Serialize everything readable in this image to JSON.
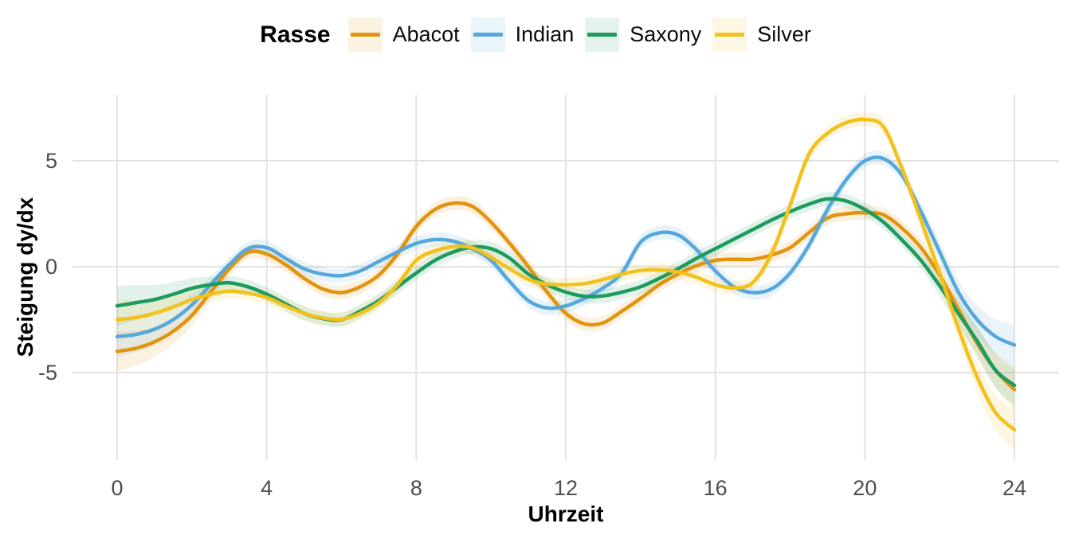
{
  "figure": {
    "background": "#FFFFFF"
  },
  "legend": {
    "title": "Rasse",
    "position": "top",
    "items": [
      {
        "label": "Abacot",
        "color": "#E2940E"
      },
      {
        "label": "Indian",
        "color": "#56A8DC"
      },
      {
        "label": "Saxony",
        "color": "#1D9B5E"
      },
      {
        "label": "Silver",
        "color": "#F2C11D"
      }
    ],
    "key_fill_alpha": 0.12
  },
  "style": {
    "grid_color": "#E3E3E3",
    "tick_label_color": "#4D4D4D",
    "text_color": "#000000",
    "ribbon_alpha": 0.13,
    "line_width": 4.5
  },
  "chart_data": {
    "type": "line",
    "title": "",
    "xlabel": "Uhrzeit",
    "ylabel": "Steigung dy/dx",
    "xlim": [
      0,
      24
    ],
    "ylim": [
      -9.2,
      8.4
    ],
    "x_ticks": [
      0,
      4,
      8,
      12,
      16,
      20,
      24
    ],
    "y_ticks": [
      -5,
      0,
      5
    ],
    "grid": "major-only",
    "legend_position": "top",
    "smoothed": true,
    "ribbon": {
      "base_halfwidth": 0.33,
      "edge_extra": 0.62,
      "edge_span_hours": 3
    },
    "x_start": 0,
    "x_step": 0.5,
    "series": [
      {
        "name": "Abacot",
        "color": "#E2940E",
        "values": [
          -4.0,
          -3.85,
          -3.55,
          -3.05,
          -2.3,
          -1.2,
          -0.1,
          0.68,
          0.6,
          0.1,
          -0.55,
          -1.05,
          -1.22,
          -0.95,
          -0.4,
          0.6,
          1.9,
          2.7,
          3.0,
          2.85,
          2.1,
          1.1,
          0.0,
          -1.2,
          -2.2,
          -2.7,
          -2.65,
          -2.1,
          -1.5,
          -0.85,
          -0.35,
          0.05,
          0.3,
          0.35,
          0.35,
          0.55,
          0.9,
          1.6,
          2.3,
          2.5,
          2.55,
          2.45,
          1.8,
          0.9,
          -0.4,
          -2.0,
          -3.6,
          -4.9,
          -5.8
        ]
      },
      {
        "name": "Indian",
        "color": "#56A8DC",
        "values": [
          -3.3,
          -3.2,
          -2.95,
          -2.5,
          -1.8,
          -0.85,
          0.1,
          0.85,
          0.9,
          0.4,
          -0.1,
          -0.35,
          -0.42,
          -0.2,
          0.25,
          0.7,
          1.1,
          1.28,
          1.2,
          0.85,
          0.3,
          -0.7,
          -1.6,
          -1.95,
          -1.85,
          -1.5,
          -1.0,
          -0.3,
          1.15,
          1.6,
          1.5,
          0.8,
          -0.2,
          -0.95,
          -1.22,
          -1.05,
          -0.3,
          1.0,
          2.7,
          4.1,
          5.0,
          5.1,
          4.3,
          2.6,
          0.7,
          -1.2,
          -2.5,
          -3.3,
          -3.7
        ]
      },
      {
        "name": "Saxony",
        "color": "#1D9B5E",
        "values": [
          -1.85,
          -1.7,
          -1.55,
          -1.3,
          -1.02,
          -0.85,
          -0.76,
          -0.95,
          -1.3,
          -1.75,
          -2.2,
          -2.45,
          -2.5,
          -2.1,
          -1.6,
          -0.95,
          -0.3,
          0.3,
          0.7,
          0.93,
          0.85,
          0.4,
          -0.35,
          -0.85,
          -1.2,
          -1.4,
          -1.38,
          -1.2,
          -0.95,
          -0.55,
          -0.1,
          0.4,
          0.85,
          1.3,
          1.75,
          2.2,
          2.6,
          2.95,
          3.2,
          3.1,
          2.7,
          2.1,
          1.25,
          0.3,
          -0.9,
          -2.2,
          -3.5,
          -4.9,
          -5.6
        ]
      },
      {
        "name": "Silver",
        "color": "#F2C11D",
        "values": [
          -2.5,
          -2.4,
          -2.2,
          -1.9,
          -1.55,
          -1.3,
          -1.15,
          -1.25,
          -1.45,
          -1.85,
          -2.2,
          -2.42,
          -2.48,
          -2.2,
          -1.7,
          -0.85,
          0.3,
          0.75,
          0.95,
          0.9,
          0.45,
          -0.1,
          -0.6,
          -0.82,
          -0.85,
          -0.8,
          -0.6,
          -0.35,
          -0.18,
          -0.15,
          -0.25,
          -0.5,
          -0.85,
          -1.0,
          -0.75,
          0.6,
          2.9,
          5.3,
          6.3,
          6.8,
          6.95,
          6.6,
          4.6,
          2.2,
          -0.3,
          -2.9,
          -5.2,
          -6.9,
          -7.7
        ]
      }
    ]
  }
}
